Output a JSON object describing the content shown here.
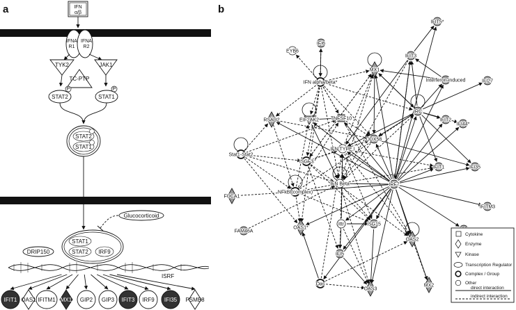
{
  "panels": {
    "a": "a",
    "b": "b"
  },
  "pathway": {
    "ifn_box": [
      "IFN",
      "α/β"
    ],
    "ifnar1": [
      "IFNA",
      "R1"
    ],
    "ifnar2": [
      "IFNA",
      "R2"
    ],
    "tyk2": "TYK2",
    "jak1": "JAK1",
    "tcptp": "TC-PTP",
    "stat2": "STAT2",
    "stat1": "STAT1",
    "phospho": "P",
    "complex1": [
      "STAT2",
      "STAT1"
    ],
    "glucocorticoid": "Glucocorticoid",
    "isgf3": [
      "STAT1",
      "STAT2",
      "IRF9"
    ],
    "drip150": "DRIP150",
    "isrf": "ISRF",
    "genes": [
      "IFIT1",
      "OAS1",
      "IFITM1",
      "MX1",
      "GIP2",
      "GIP3",
      "IFIT3",
      "IRF9",
      "IFI35",
      "PSMB8"
    ]
  },
  "network": {
    "nodes": [
      {
        "id": "IFIT5",
        "label": "IFIT5*"
      },
      {
        "id": "IFI6",
        "label": "IFI6"
      },
      {
        "id": "EYB6",
        "label": "EYB6"
      },
      {
        "id": "IFIT3",
        "label": "IFIT3"
      },
      {
        "id": "MX1",
        "label": "MX1"
      },
      {
        "id": "IFN",
        "label": "IFN alpha/beta*"
      },
      {
        "id": "INTERFERON",
        "label": "Interferon-induced"
      },
      {
        "id": "IFI27",
        "label": "IFI27"
      },
      {
        "id": "RSAD2",
        "label": "RSAD2"
      },
      {
        "id": "EIF2AK2",
        "label": "EIF2AK2"
      },
      {
        "id": "TNFSF10",
        "label": "TNFSF10"
      },
      {
        "id": "IRC",
        "label": "IRC"
      },
      {
        "id": "IFIT2",
        "label": "IFIT2"
      },
      {
        "id": "IFI44",
        "label": "IFI44*"
      },
      {
        "id": "STAT",
        "label": "Stat1-Stat2"
      },
      {
        "id": "DDX58",
        "label": "DDX58"
      },
      {
        "id": "IFNTYPE",
        "label": "IFN TYPE I"
      },
      {
        "id": "ISGF3",
        "label": "ISGF3"
      },
      {
        "id": "IFIT1",
        "label": "IFIT1"
      },
      {
        "id": "IFI35",
        "label": "IFI35"
      },
      {
        "id": "IFNBETA",
        "label": "IFN Beta"
      },
      {
        "id": "IRF7",
        "label": "IRF7"
      },
      {
        "id": "FUCA1",
        "label": "FUCA1"
      },
      {
        "id": "NFKB",
        "label": "NFkB (complex)"
      },
      {
        "id": "IFITM3",
        "label": "IFITM3"
      },
      {
        "id": "FAM46A",
        "label": "FAM46A"
      },
      {
        "id": "OAS1",
        "label": "OAS1*"
      },
      {
        "id": "ITTR",
        "label": "Ittr"
      },
      {
        "id": "ISG15",
        "label": "ISG15"
      },
      {
        "id": "IFI44L",
        "label": "IFI44L"
      },
      {
        "id": "OAS2",
        "label": "OAS2"
      },
      {
        "id": "IFI5",
        "label": "IFI5"
      },
      {
        "id": "OAS",
        "label": "Oas"
      },
      {
        "id": "OAS3",
        "label": "OAS3"
      },
      {
        "id": "MX2",
        "label": "MX2"
      }
    ],
    "legend": {
      "items": [
        "Cytokine",
        "Enzyme",
        "Kinase",
        "Transcription Regulator",
        "Complex / Group",
        "Other"
      ],
      "direct": "direct interaction",
      "indirect": "indirect interaction"
    }
  }
}
